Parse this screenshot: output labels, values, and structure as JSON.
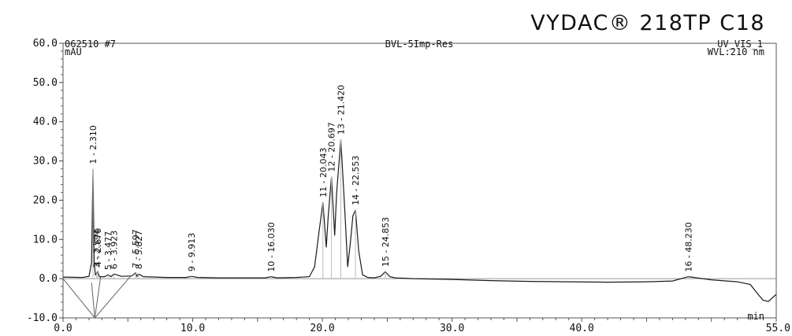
{
  "brand": "VYDAC® 218TP C18",
  "chart_data": {
    "type": "line",
    "title": "BVL-5Imp-Res",
    "sample_id": "062510 #7",
    "channel": "UV_VIS_1",
    "wavelength": "WVL:210 nm",
    "xlabel": "min",
    "ylabel": "mAU",
    "xlim": [
      0,
      55
    ],
    "ylim": [
      -10,
      60
    ],
    "x_ticks": [
      "0.0",
      "10.0",
      "20.0",
      "30.0",
      "40.0",
      "55.0"
    ],
    "x_tick_values": [
      0,
      10,
      20,
      30,
      40,
      55
    ],
    "y_ticks": [
      "-10.0",
      "0.0",
      "10.0",
      "20.0",
      "30.0",
      "40.0",
      "50.0",
      "60.0"
    ],
    "y_tick_values": [
      -10,
      0,
      10,
      20,
      30,
      40,
      50,
      60
    ],
    "grid": false,
    "peaks": [
      {
        "label": "1 - 2.310",
        "rt": 2.31,
        "height": 28
      },
      {
        "label": "3 - 2.594",
        "rt": 2.594,
        "height": 1.5
      },
      {
        "label": "4 - 2.670",
        "rt": 2.67,
        "height": 1.8
      },
      {
        "label": "5 - 3.477",
        "rt": 3.477,
        "height": 1
      },
      {
        "label": "6 - 3.923",
        "rt": 3.923,
        "height": 1.2
      },
      {
        "label": "7 - 5.597",
        "rt": 5.597,
        "height": 1.5
      },
      {
        "label": "8 - 5.827",
        "rt": 5.827,
        "height": 1.2
      },
      {
        "label": "9 - 9.913",
        "rt": 9.913,
        "height": 0.6
      },
      {
        "label": "10 - 16.030",
        "rt": 16.03,
        "height": 0.5
      },
      {
        "label": "11 - 20.043",
        "rt": 20.043,
        "height": 19.5
      },
      {
        "label": "12 - 20.697",
        "rt": 20.697,
        "height": 26
      },
      {
        "label": "13 - 21.420",
        "rt": 21.42,
        "height": 35.5
      },
      {
        "label": "14 - 22.553",
        "rt": 22.553,
        "height": 17.5
      },
      {
        "label": "15 - 24.853",
        "rt": 24.853,
        "height": 1.8
      },
      {
        "label": "16 - 48.230",
        "rt": 48.23,
        "height": 0.5
      }
    ],
    "series": [
      {
        "x": [
          0,
          1.5,
          2.0,
          2.2,
          2.31,
          2.4,
          2.5,
          2.6,
          2.67,
          2.8,
          3.2,
          3.477,
          3.7,
          3.923,
          4.5,
          5.3,
          5.597,
          5.7,
          5.827,
          6.2,
          8.0,
          9.5,
          9.913,
          10.4,
          12.0,
          14.0,
          15.6,
          16.03,
          16.5,
          18.0,
          19.0,
          19.4,
          19.7,
          20.043,
          20.3,
          20.45,
          20.697,
          20.95,
          21.1,
          21.42,
          21.75,
          21.95,
          22.15,
          22.35,
          22.553,
          22.8,
          23.1,
          23.5,
          24.0,
          24.5,
          24.853,
          25.2,
          25.6,
          27.0,
          30.0,
          33.0,
          36.0,
          39.0,
          42.0,
          45.0,
          47.0,
          48.23,
          50.0,
          52.0,
          53.0,
          53.6,
          54.0,
          54.4,
          55.0
        ],
        "y": [
          0.4,
          0.3,
          0.6,
          4.0,
          28.0,
          4.0,
          1.0,
          1.5,
          1.8,
          0.5,
          0.5,
          1.0,
          0.5,
          1.2,
          0.6,
          0.7,
          1.5,
          0.6,
          1.2,
          0.5,
          0.3,
          0.3,
          0.6,
          0.3,
          0.2,
          0.2,
          0.2,
          0.5,
          0.2,
          0.3,
          0.5,
          3.0,
          11.0,
          19.5,
          8.0,
          16.0,
          26.0,
          11.0,
          22.0,
          35.5,
          16.0,
          3.0,
          9.0,
          16.0,
          17.5,
          7.0,
          1.0,
          0.3,
          0.2,
          0.6,
          1.8,
          0.5,
          0.2,
          0.0,
          -0.2,
          -0.5,
          -0.7,
          -0.8,
          -0.9,
          -0.8,
          -0.6,
          0.5,
          -0.3,
          -0.8,
          -1.5,
          -4.0,
          -5.5,
          -5.8,
          -4.0
        ]
      }
    ]
  }
}
